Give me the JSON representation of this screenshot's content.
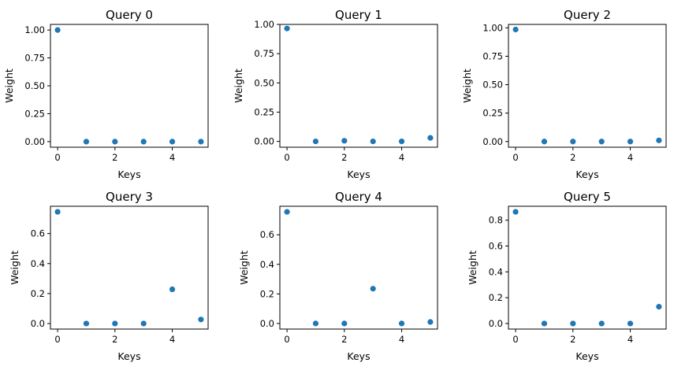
{
  "chart_data": [
    {
      "type": "scatter",
      "title": "Query 0",
      "xlabel": "Keys",
      "ylabel": "Weight",
      "x": [
        0,
        1,
        2,
        3,
        4,
        5
      ],
      "y": [
        1.0,
        0.0,
        0.0,
        0.0,
        0.0,
        0.0
      ],
      "xlim": [
        -0.25,
        5.25
      ],
      "ylim": [
        -0.05,
        1.05
      ],
      "xticks": [
        0,
        2,
        4
      ],
      "xtick_labels": [
        "0",
        "2",
        "4"
      ],
      "yticks": [
        0,
        0.25,
        0.5,
        0.75,
        1.0
      ],
      "ytick_labels": [
        "0.00",
        "0.25",
        "0.50",
        "0.75",
        "1.00"
      ],
      "color": "#1f77b4",
      "grid": false
    },
    {
      "type": "scatter",
      "title": "Query 1",
      "xlabel": "Keys",
      "ylabel": "Weight",
      "x": [
        0,
        1,
        2,
        3,
        4,
        5
      ],
      "y": [
        0.965,
        0.0,
        0.005,
        0.0,
        0.0,
        0.03
      ],
      "xlim": [
        -0.25,
        5.25
      ],
      "ylim": [
        -0.05,
        1.0
      ],
      "xticks": [
        0,
        2,
        4
      ],
      "xtick_labels": [
        "0",
        "2",
        "4"
      ],
      "yticks": [
        0,
        0.25,
        0.5,
        0.75,
        1.0
      ],
      "ytick_labels": [
        "0.00",
        "0.25",
        "0.50",
        "0.75",
        "1.00"
      ],
      "color": "#1f77b4",
      "grid": false
    },
    {
      "type": "scatter",
      "title": "Query 2",
      "xlabel": "Keys",
      "ylabel": "Weight",
      "x": [
        0,
        1,
        2,
        3,
        4,
        5
      ],
      "y": [
        0.985,
        0.0,
        0.0,
        0.0,
        0.0,
        0.01
      ],
      "xlim": [
        -0.25,
        5.25
      ],
      "ylim": [
        -0.05,
        1.03
      ],
      "xticks": [
        0,
        2,
        4
      ],
      "xtick_labels": [
        "0",
        "2",
        "4"
      ],
      "yticks": [
        0,
        0.25,
        0.5,
        0.75,
        1.0
      ],
      "ytick_labels": [
        "0.00",
        "0.25",
        "0.50",
        "0.75",
        "1.00"
      ],
      "color": "#1f77b4",
      "grid": false
    },
    {
      "type": "scatter",
      "title": "Query 3",
      "xlabel": "Keys",
      "ylabel": "Weight",
      "x": [
        0,
        1,
        2,
        3,
        4,
        5
      ],
      "y": [
        0.745,
        0.0,
        0.0,
        0.0,
        0.228,
        0.027
      ],
      "xlim": [
        -0.25,
        5.25
      ],
      "ylim": [
        -0.037,
        0.782
      ],
      "xticks": [
        0,
        2,
        4
      ],
      "xtick_labels": [
        "0",
        "2",
        "4"
      ],
      "yticks": [
        0,
        0.2,
        0.4,
        0.6
      ],
      "ytick_labels": [
        "0.0",
        "0.2",
        "0.4",
        "0.6"
      ],
      "color": "#1f77b4",
      "grid": false
    },
    {
      "type": "scatter",
      "title": "Query 4",
      "xlabel": "Keys",
      "ylabel": "Weight",
      "x": [
        0,
        1,
        2,
        3,
        4,
        5
      ],
      "y": [
        0.755,
        0.0,
        0.0,
        0.235,
        0.0,
        0.01
      ],
      "xlim": [
        -0.25,
        5.25
      ],
      "ylim": [
        -0.038,
        0.793
      ],
      "xticks": [
        0,
        2,
        4
      ],
      "xtick_labels": [
        "0",
        "2",
        "4"
      ],
      "yticks": [
        0,
        0.2,
        0.4,
        0.6
      ],
      "ytick_labels": [
        "0.0",
        "0.2",
        "0.4",
        "0.6"
      ],
      "color": "#1f77b4",
      "grid": false
    },
    {
      "type": "scatter",
      "title": "Query 5",
      "xlabel": "Keys",
      "ylabel": "Weight",
      "x": [
        0,
        1,
        2,
        3,
        4,
        5
      ],
      "y": [
        0.865,
        0.0,
        0.0,
        0.0,
        0.0,
        0.13
      ],
      "xlim": [
        -0.25,
        5.25
      ],
      "ylim": [
        -0.043,
        0.908
      ],
      "xticks": [
        0,
        2,
        4
      ],
      "xtick_labels": [
        "0",
        "2",
        "4"
      ],
      "yticks": [
        0,
        0.2,
        0.4,
        0.6,
        0.8
      ],
      "ytick_labels": [
        "0.0",
        "0.2",
        "0.4",
        "0.6",
        "0.8"
      ],
      "color": "#1f77b4",
      "grid": false
    }
  ]
}
